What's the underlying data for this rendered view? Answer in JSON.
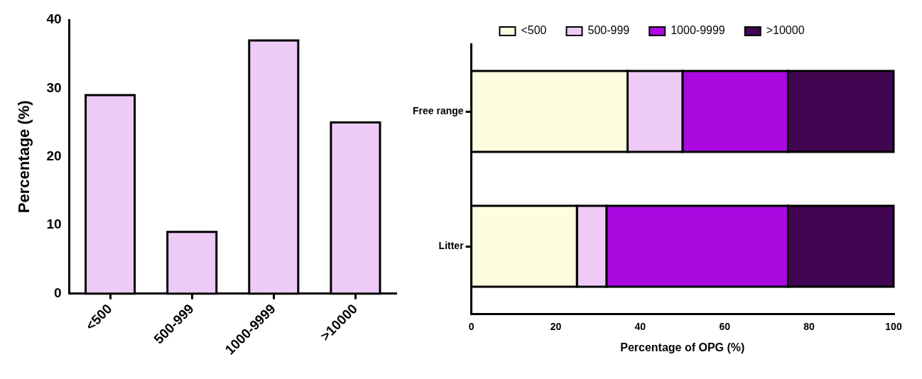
{
  "chart_data": [
    {
      "type": "bar",
      "ylabel": "Percentage (%)",
      "categories": [
        "<500",
        "500-999",
        "1000-9999",
        ">10000"
      ],
      "values": [
        29,
        9,
        37,
        25
      ],
      "color": "#eecbf7",
      "ylim": [
        0,
        40
      ],
      "yticks": [
        0,
        10,
        20,
        30,
        40
      ],
      "grid": false,
      "legend": false
    },
    {
      "type": "bar",
      "orientation": "horizontal",
      "stacked": true,
      "xlabel": "Percentage of OPG (%)",
      "categories": [
        "Free range",
        "Litter"
      ],
      "series": [
        {
          "name": "<500",
          "color": "#fdfde0",
          "values": [
            37,
            25
          ]
        },
        {
          "name": "500-999",
          "color": "#eecbf7",
          "values": [
            13,
            7
          ]
        },
        {
          "name": "1000-9999",
          "color": "#ab08e0",
          "values": [
            25,
            43
          ]
        },
        {
          "name": ">10000",
          "color": "#420552",
          "values": [
            25,
            25
          ]
        }
      ],
      "xlim": [
        0,
        100
      ],
      "xticks": [
        0,
        20,
        40,
        60,
        80,
        100
      ],
      "grid": false,
      "legend": "top"
    }
  ]
}
